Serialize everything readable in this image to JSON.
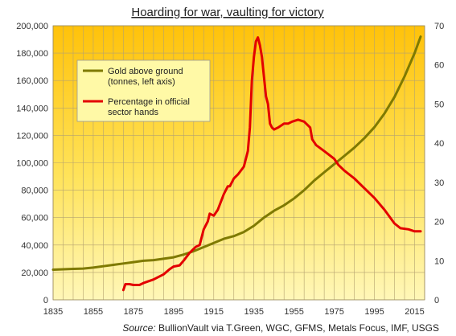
{
  "chart_data": {
    "type": "line",
    "title": "Hoarding for war, vaulting for victory",
    "source_label": "Source:",
    "source_text": "BullionVault via T.Green, WGC, GFMS, Metals Focus, IMF, USGS",
    "xlim": [
      1835,
      2020
    ],
    "x_ticks": [
      1835,
      1855,
      1875,
      1895,
      1915,
      1935,
      1955,
      1975,
      1995,
      2015
    ],
    "left_axis": {
      "ylim": [
        0,
        200000
      ],
      "ticks": [
        0,
        20000,
        40000,
        60000,
        80000,
        100000,
        120000,
        140000,
        160000,
        180000,
        200000
      ],
      "tick_labels": [
        "0",
        "20,000",
        "40,000",
        "60,000",
        "80,000",
        "100,000",
        "120,000",
        "140,000",
        "160,000",
        "180,000",
        "200,000"
      ]
    },
    "right_axis": {
      "ylim": [
        0,
        70
      ],
      "ticks": [
        0,
        10,
        20,
        30,
        40,
        50,
        60,
        70
      ],
      "tick_labels": [
        "0",
        "10",
        "20",
        "30",
        "40",
        "50",
        "60",
        "70"
      ]
    },
    "grid": true,
    "legend_position": "top-left",
    "series": [
      {
        "name": "Gold above ground (tonnes, left axis)",
        "legend_lines": [
          "Gold above ground",
          "(tonnes, left axis)"
        ],
        "axis": "left",
        "color": "#7f7a00",
        "points": [
          [
            1835,
            22000
          ],
          [
            1840,
            22300
          ],
          [
            1845,
            22600
          ],
          [
            1850,
            22800
          ],
          [
            1855,
            23500
          ],
          [
            1860,
            24500
          ],
          [
            1865,
            25500
          ],
          [
            1870,
            26500
          ],
          [
            1875,
            27500
          ],
          [
            1880,
            28500
          ],
          [
            1885,
            29000
          ],
          [
            1890,
            30000
          ],
          [
            1895,
            31000
          ],
          [
            1900,
            33000
          ],
          [
            1905,
            35500
          ],
          [
            1910,
            38500
          ],
          [
            1915,
            41500
          ],
          [
            1920,
            44500
          ],
          [
            1925,
            46500
          ],
          [
            1930,
            49500
          ],
          [
            1935,
            54000
          ],
          [
            1940,
            60000
          ],
          [
            1945,
            65000
          ],
          [
            1950,
            69000
          ],
          [
            1955,
            74000
          ],
          [
            1960,
            80000
          ],
          [
            1965,
            87000
          ],
          [
            1970,
            93000
          ],
          [
            1975,
            99000
          ],
          [
            1980,
            105000
          ],
          [
            1985,
            111000
          ],
          [
            1990,
            118000
          ],
          [
            1995,
            126000
          ],
          [
            2000,
            136000
          ],
          [
            2005,
            148000
          ],
          [
            2010,
            163000
          ],
          [
            2015,
            180000
          ],
          [
            2018,
            192000
          ]
        ]
      },
      {
        "name": "Percentage in official sector hands",
        "legend_lines": [
          "Percentage in official",
          "sector hands"
        ],
        "axis": "right",
        "color": "#e30000",
        "points": [
          [
            1870,
            2.5
          ],
          [
            1871,
            4
          ],
          [
            1873,
            4
          ],
          [
            1875,
            3.8
          ],
          [
            1878,
            3.8
          ],
          [
            1880,
            4.3
          ],
          [
            1885,
            5.2
          ],
          [
            1890,
            6.5
          ],
          [
            1893,
            7.8
          ],
          [
            1895,
            8.5
          ],
          [
            1898,
            8.8
          ],
          [
            1900,
            10
          ],
          [
            1903,
            12
          ],
          [
            1906,
            13.5
          ],
          [
            1908,
            14
          ],
          [
            1910,
            18
          ],
          [
            1912,
            20
          ],
          [
            1913,
            22
          ],
          [
            1915,
            21.5
          ],
          [
            1917,
            23
          ],
          [
            1920,
            27
          ],
          [
            1922,
            29
          ],
          [
            1923,
            29
          ],
          [
            1925,
            31
          ],
          [
            1927,
            32
          ],
          [
            1930,
            34
          ],
          [
            1932,
            38
          ],
          [
            1933,
            44
          ],
          [
            1934,
            56
          ],
          [
            1935,
            62
          ],
          [
            1936,
            66
          ],
          [
            1937,
            67
          ],
          [
            1938,
            65
          ],
          [
            1939,
            62
          ],
          [
            1940,
            57
          ],
          [
            1941,
            52
          ],
          [
            1942,
            50
          ],
          [
            1943,
            45
          ],
          [
            1944,
            44
          ],
          [
            1945,
            43.5
          ],
          [
            1947,
            44
          ],
          [
            1950,
            45
          ],
          [
            1952,
            45
          ],
          [
            1954,
            45.5
          ],
          [
            1957,
            46
          ],
          [
            1960,
            45.5
          ],
          [
            1963,
            44
          ],
          [
            1964,
            41
          ],
          [
            1966,
            39.5
          ],
          [
            1970,
            38
          ],
          [
            1975,
            36
          ],
          [
            1977,
            34.5
          ],
          [
            1980,
            33
          ],
          [
            1985,
            31
          ],
          [
            1990,
            28.5
          ],
          [
            1995,
            26
          ],
          [
            2000,
            23
          ],
          [
            2005,
            19.5
          ],
          [
            2008,
            18.3
          ],
          [
            2012,
            18
          ],
          [
            2015,
            17.5
          ],
          [
            2018,
            17.5
          ]
        ]
      }
    ]
  }
}
